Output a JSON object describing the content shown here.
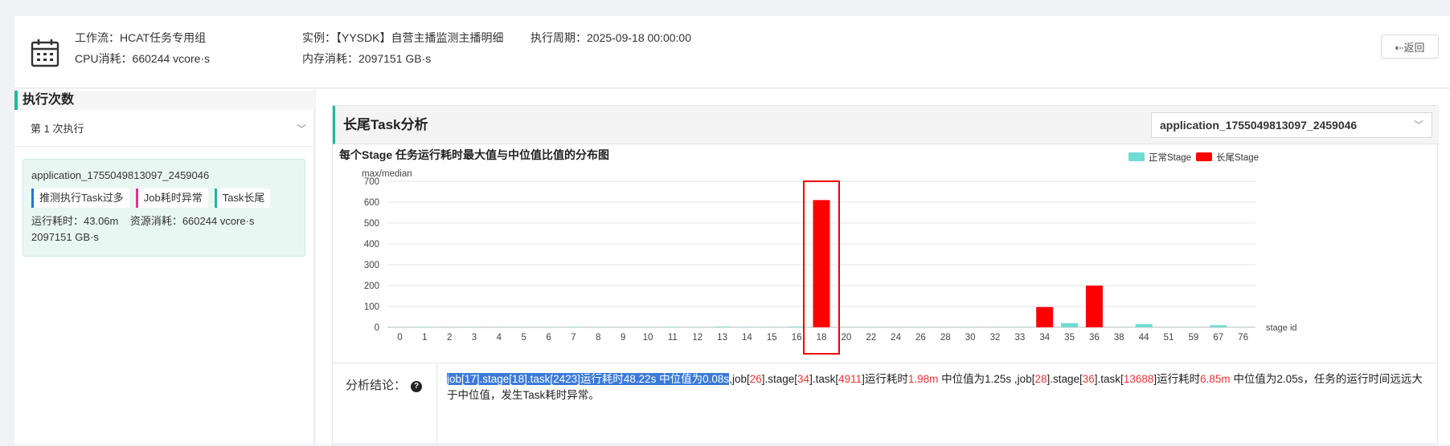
{
  "header": {
    "workflow": "工作流：HCAT任务专用组",
    "cpu": "CPU消耗：660244 vcore·s",
    "instance": "实例：【YYSDK】自营主播监测主播明细",
    "memory": "内存消耗：2097151 GB·s",
    "period": "执行周期：2025-09-18 00:00:00",
    "back_label": "⇠返回"
  },
  "left": {
    "title": "执行次数",
    "exec_select": "第 1 次执行",
    "card": {
      "app_id": "application_1755049813097_2459046",
      "tags": [
        "推测执行Task过多",
        "Job耗时异常",
        "Task长尾"
      ],
      "runtime": "运行耗时：43.06m",
      "resource": "资源消耗：660244 vcore·s",
      "resource2": "2097151 GB·s"
    }
  },
  "panel": {
    "title": "长尾Task分析",
    "app_select": "application_1755049813097_2459046"
  },
  "chart_data": {
    "type": "bar",
    "title": "每个Stage 任务运行耗时最大值与中位值比值的分布图",
    "ylabel": "max/median",
    "xlabel": "stage id",
    "ylim": [
      0,
      700
    ],
    "yticks": [
      0,
      100,
      200,
      300,
      400,
      500,
      600,
      700
    ],
    "legend_position": "top-right",
    "categories": [
      "0",
      "1",
      "2",
      "3",
      "4",
      "5",
      "6",
      "7",
      "8",
      "9",
      "10",
      "11",
      "12",
      "13",
      "14",
      "15",
      "16",
      "18",
      "20",
      "22",
      "24",
      "26",
      "28",
      "30",
      "32",
      "33",
      "34",
      "35",
      "36",
      "38",
      "44",
      "51",
      "59",
      "67",
      "76"
    ],
    "series": [
      {
        "name": "正常Stage",
        "color": "#6edcd2",
        "values": [
          1,
          2,
          1,
          1,
          1,
          1,
          1,
          2,
          1,
          1,
          1,
          2,
          1,
          3,
          2,
          1,
          3,
          0,
          1,
          1,
          1,
          1,
          1,
          1,
          1,
          2,
          0,
          20,
          0,
          1,
          15,
          1,
          1,
          10,
          1
        ]
      },
      {
        "name": "长尾Stage",
        "color": "#f00",
        "values": [
          0,
          0,
          0,
          0,
          0,
          0,
          0,
          0,
          0,
          0,
          0,
          0,
          0,
          0,
          0,
          0,
          0,
          610,
          0,
          0,
          0,
          0,
          0,
          0,
          0,
          0,
          97,
          0,
          200,
          0,
          0,
          0,
          0,
          0,
          0
        ]
      }
    ],
    "highlight_category": "18"
  },
  "conclusion": {
    "label": "分析结论：",
    "help_icon": "question-circle-icon",
    "seg_highlight": "job[17].stage[18].task[2423]运行耗时48.22s 中位值为0.08s",
    "seg_b1": ",job[",
    "seg_r1": "26",
    "seg_b2": "].stage[",
    "seg_r2": "34",
    "seg_b3": "].task[",
    "seg_r3": "4911",
    "seg_b4": "]运行耗时",
    "seg_r4": "1.98m",
    "seg_b5": " 中位值为1.25s ,job[",
    "seg_r5": "28",
    "seg_b6": "].stage[",
    "seg_r6": "36",
    "seg_b7": "].task[",
    "seg_r7": "13688",
    "seg_b8": "]运行耗时",
    "seg_r8": "6.85m",
    "seg_b9": " 中位值为2.05s，任务的运行时间远远大于中位值，发生Task耗时异常。"
  }
}
